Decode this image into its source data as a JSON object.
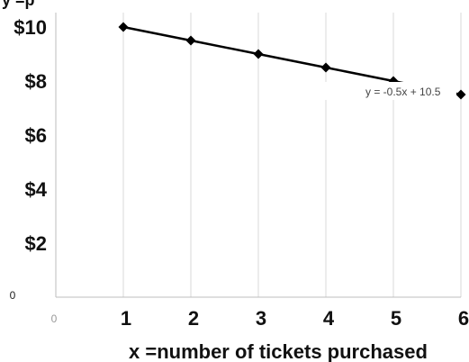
{
  "chart_data": {
    "type": "line",
    "title_fragment": "y =p",
    "xlabel": "x =number of tickets purchased",
    "ylabel": "",
    "x_tick_labels": [
      "0",
      "1",
      "2",
      "3",
      "4",
      "5",
      "6"
    ],
    "y_tick_labels": [
      "0",
      "$2",
      "$4",
      "$6",
      "$8",
      "$10"
    ],
    "xlim": [
      0,
      6
    ],
    "ylim": [
      0,
      10
    ],
    "grid": "vertical",
    "series": [
      {
        "x": [
          1,
          2,
          3,
          4,
          5,
          6
        ],
        "y": [
          10,
          9.5,
          9,
          8.5,
          8,
          7.5
        ],
        "color": "#000000",
        "marker": "diamond"
      }
    ],
    "trendline": {
      "slope": -0.5,
      "intercept": 10.5,
      "label": "y = -0.5x + 10.5",
      "color": "#000000"
    }
  }
}
